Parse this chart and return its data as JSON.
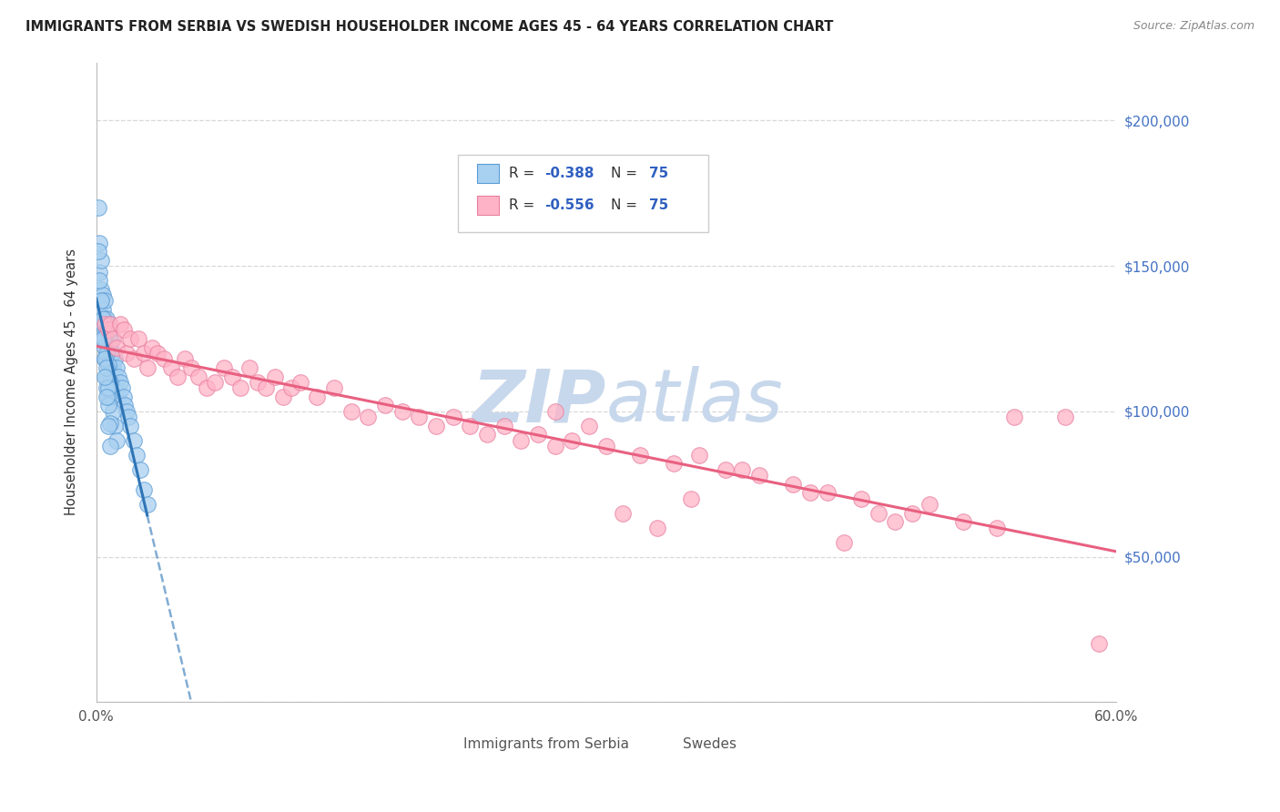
{
  "title": "IMMIGRANTS FROM SERBIA VS SWEDISH HOUSEHOLDER INCOME AGES 45 - 64 YEARS CORRELATION CHART",
  "source": "Source: ZipAtlas.com",
  "ylabel": "Householder Income Ages 45 - 64 years",
  "xmin": 0.0,
  "xmax": 0.6,
  "ymin": 0,
  "ymax": 220000,
  "yticks": [
    0,
    50000,
    100000,
    150000,
    200000
  ],
  "right_ytick_labels": [
    "$50,000",
    "$100,000",
    "$150,000",
    "$200,000"
  ],
  "right_ytick_vals": [
    50000,
    100000,
    150000,
    200000
  ],
  "xtick_vals": [
    0.0,
    0.1,
    0.2,
    0.3,
    0.4,
    0.5,
    0.6
  ],
  "xtick_labels": [
    "0.0%",
    "",
    "",
    "",
    "",
    "",
    "60.0%"
  ],
  "blue_color": "#a8d0f0",
  "blue_edge_color": "#5b9bd5",
  "pink_color": "#ffb3c6",
  "pink_edge_color": "#e87fa0",
  "blue_line_color": "#2e75b6",
  "pink_line_color": "#e86080",
  "watermark_color": "#c8d8ec",
  "grid_color": "#d8d8d8",
  "text_color": "#333333",
  "right_axis_color": "#4472c4",
  "serbia_x": [
    0.001,
    0.002,
    0.002,
    0.003,
    0.003,
    0.003,
    0.004,
    0.004,
    0.004,
    0.005,
    0.005,
    0.005,
    0.005,
    0.005,
    0.006,
    0.006,
    0.006,
    0.006,
    0.007,
    0.007,
    0.007,
    0.007,
    0.008,
    0.008,
    0.008,
    0.008,
    0.009,
    0.009,
    0.009,
    0.01,
    0.01,
    0.01,
    0.011,
    0.011,
    0.012,
    0.012,
    0.013,
    0.013,
    0.014,
    0.015,
    0.016,
    0.017,
    0.018,
    0.019,
    0.02,
    0.022,
    0.024,
    0.026,
    0.028,
    0.03,
    0.001,
    0.002,
    0.003,
    0.004,
    0.005,
    0.006,
    0.007,
    0.008,
    0.009,
    0.01,
    0.011,
    0.012,
    0.004,
    0.005,
    0.006,
    0.007,
    0.006,
    0.007,
    0.008,
    0.006,
    0.007,
    0.006,
    0.005,
    0.007,
    0.008
  ],
  "serbia_y": [
    170000,
    158000,
    148000,
    152000,
    142000,
    138000,
    140000,
    135000,
    130000,
    138000,
    132000,
    128000,
    122000,
    118000,
    132000,
    128000,
    124000,
    118000,
    130000,
    126000,
    122000,
    116000,
    128000,
    124000,
    118000,
    112000,
    124000,
    120000,
    114000,
    120000,
    115000,
    109000,
    118000,
    112000,
    115000,
    108000,
    112000,
    106000,
    110000,
    108000,
    105000,
    102000,
    100000,
    98000,
    95000,
    90000,
    85000,
    80000,
    73000,
    68000,
    155000,
    145000,
    138000,
    132000,
    125000,
    120000,
    116000,
    110000,
    105000,
    100000,
    95000,
    90000,
    125000,
    118000,
    112000,
    105000,
    108000,
    102000,
    96000,
    115000,
    108000,
    105000,
    112000,
    95000,
    88000
  ],
  "swedes_x": [
    0.005,
    0.007,
    0.008,
    0.01,
    0.012,
    0.014,
    0.016,
    0.018,
    0.02,
    0.022,
    0.025,
    0.028,
    0.03,
    0.033,
    0.036,
    0.04,
    0.044,
    0.048,
    0.052,
    0.056,
    0.06,
    0.065,
    0.07,
    0.075,
    0.08,
    0.085,
    0.09,
    0.095,
    0.1,
    0.105,
    0.11,
    0.115,
    0.12,
    0.13,
    0.14,
    0.15,
    0.16,
    0.17,
    0.18,
    0.19,
    0.2,
    0.21,
    0.22,
    0.23,
    0.24,
    0.25,
    0.26,
    0.27,
    0.28,
    0.3,
    0.32,
    0.34,
    0.355,
    0.37,
    0.39,
    0.41,
    0.43,
    0.45,
    0.48,
    0.49,
    0.51,
    0.53,
    0.27,
    0.29,
    0.38,
    0.42,
    0.31,
    0.35,
    0.46,
    0.33,
    0.44,
    0.47,
    0.54,
    0.57,
    0.59
  ],
  "swedes_y": [
    130000,
    128000,
    130000,
    125000,
    122000,
    130000,
    128000,
    120000,
    125000,
    118000,
    125000,
    120000,
    115000,
    122000,
    120000,
    118000,
    115000,
    112000,
    118000,
    115000,
    112000,
    108000,
    110000,
    115000,
    112000,
    108000,
    115000,
    110000,
    108000,
    112000,
    105000,
    108000,
    110000,
    105000,
    108000,
    100000,
    98000,
    102000,
    100000,
    98000,
    95000,
    98000,
    95000,
    92000,
    95000,
    90000,
    92000,
    88000,
    90000,
    88000,
    85000,
    82000,
    85000,
    80000,
    78000,
    75000,
    72000,
    70000,
    65000,
    68000,
    62000,
    60000,
    100000,
    95000,
    80000,
    72000,
    65000,
    70000,
    65000,
    60000,
    55000,
    62000,
    98000,
    98000,
    20000
  ],
  "legend_r1": "R = -0.388",
  "legend_r2": "R = -0.556",
  "legend_n": "N = 75",
  "bottom_label1": "Immigrants from Serbia",
  "bottom_label2": "Swedes"
}
